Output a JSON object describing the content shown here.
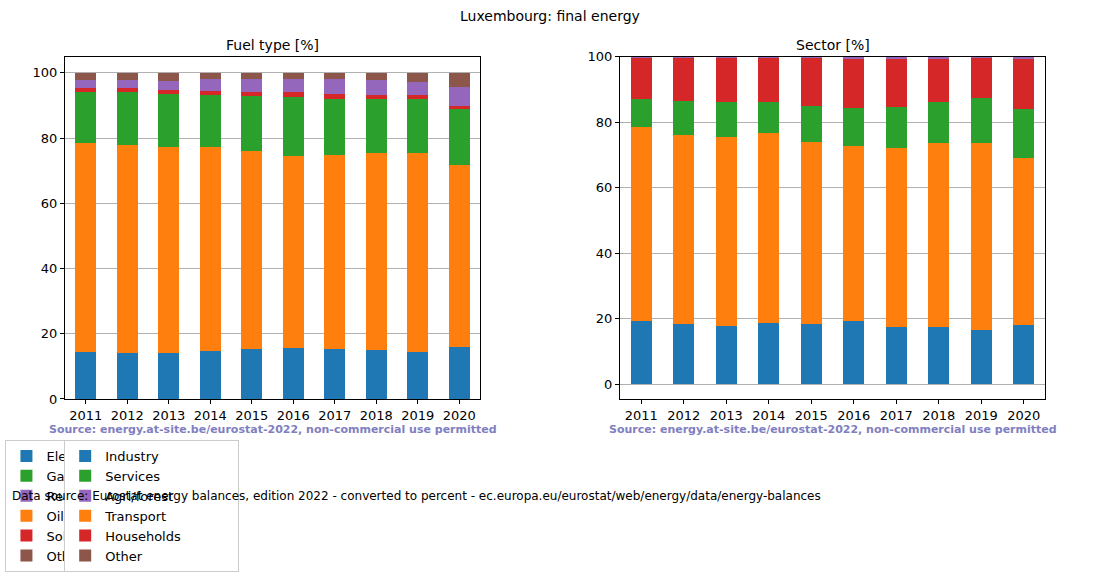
{
  "title": "Luxembourg: final energy",
  "footer": "Data source: Eurostat energy balances, edition 2022 - converted to percent - ec.europa.eu/eurostat/web/energy/data/energy-balances",
  "chart_data": [
    {
      "type": "bar",
      "stacked": true,
      "grid": true,
      "legend": "bottom",
      "title": "Fuel type [%]",
      "annotations": [
        "Source: energy.at-site.be/eurostat-2022, non-commercial use permitted"
      ],
      "categories": [
        "2011",
        "2012",
        "2013",
        "2014",
        "2015",
        "2016",
        "2017",
        "2018",
        "2019",
        "2020"
      ],
      "ylim": [
        0,
        105
      ],
      "yticks": [
        0,
        20,
        40,
        60,
        80,
        100
      ],
      "series": [
        {
          "name": "Electricity",
          "color": "#1f77b4",
          "values": [
            14.3,
            14.0,
            14.0,
            14.6,
            15.2,
            15.5,
            15.2,
            14.9,
            14.4,
            16.0
          ]
        },
        {
          "name": "Oil/petrol",
          "color": "#ff7f0e",
          "values": [
            64.2,
            63.8,
            63.3,
            62.6,
            60.7,
            59.0,
            59.6,
            60.6,
            61.1,
            55.8
          ]
        },
        {
          "name": "Gas",
          "color": "#2ca02c",
          "values": [
            15.5,
            16.2,
            16.1,
            16.0,
            17.0,
            18.0,
            17.2,
            16.5,
            16.5,
            17.2
          ]
        },
        {
          "name": "Solid fossil",
          "color": "#d62728",
          "values": [
            1.3,
            1.3,
            1.4,
            1.4,
            1.4,
            1.5,
            1.5,
            1.2,
            1.2,
            1.0
          ]
        },
        {
          "name": "Renewables & biofuel",
          "color": "#9467bd",
          "values": [
            2.5,
            2.5,
            2.8,
            3.4,
            3.7,
            4.0,
            4.5,
            4.6,
            4.0,
            5.6
          ]
        },
        {
          "name": "Other",
          "color": "#8c564b",
          "values": [
            2.2,
            2.2,
            2.4,
            2.0,
            2.0,
            2.0,
            2.0,
            2.2,
            2.8,
            4.4
          ]
        }
      ]
    },
    {
      "type": "bar",
      "stacked": true,
      "grid": true,
      "legend": "bottom",
      "title": "Sector [%]",
      "annotations": [
        "Source: energy.at-site.be/eurostat-2022, non-commercial use permitted"
      ],
      "categories": [
        "2011",
        "2012",
        "2013",
        "2014",
        "2015",
        "2016",
        "2017",
        "2018",
        "2019",
        "2020"
      ],
      "ylim": [
        -4.5,
        100
      ],
      "yticks": [
        0,
        20,
        40,
        60,
        80,
        100
      ],
      "series": [
        {
          "name": "Industry",
          "color": "#1f77b4",
          "values": [
            19.2,
            18.5,
            17.8,
            18.6,
            18.4,
            19.2,
            17.5,
            17.5,
            16.7,
            18.0
          ]
        },
        {
          "name": "Transport",
          "color": "#ff7f0e",
          "values": [
            59.3,
            57.7,
            57.7,
            58.0,
            55.4,
            53.6,
            54.7,
            56.0,
            56.8,
            51.0
          ]
        },
        {
          "name": "Services",
          "color": "#2ca02c",
          "values": [
            8.5,
            10.3,
            10.5,
            9.6,
            11.0,
            11.4,
            12.3,
            12.5,
            13.8,
            15.0
          ]
        },
        {
          "name": "Households",
          "color": "#d62728",
          "values": [
            12.6,
            13.0,
            13.5,
            13.3,
            14.7,
            15.2,
            14.8,
            13.3,
            12.2,
            15.2
          ]
        },
        {
          "name": "Agri/forest",
          "color": "#9467bd",
          "values": [
            0.4,
            0.5,
            0.5,
            0.5,
            0.5,
            0.6,
            0.7,
            0.7,
            0.5,
            0.8
          ]
        },
        {
          "name": "Other",
          "color": "#8c564b",
          "values": [
            0,
            0,
            0,
            0,
            0,
            0,
            0,
            0,
            0,
            0
          ]
        }
      ]
    }
  ]
}
